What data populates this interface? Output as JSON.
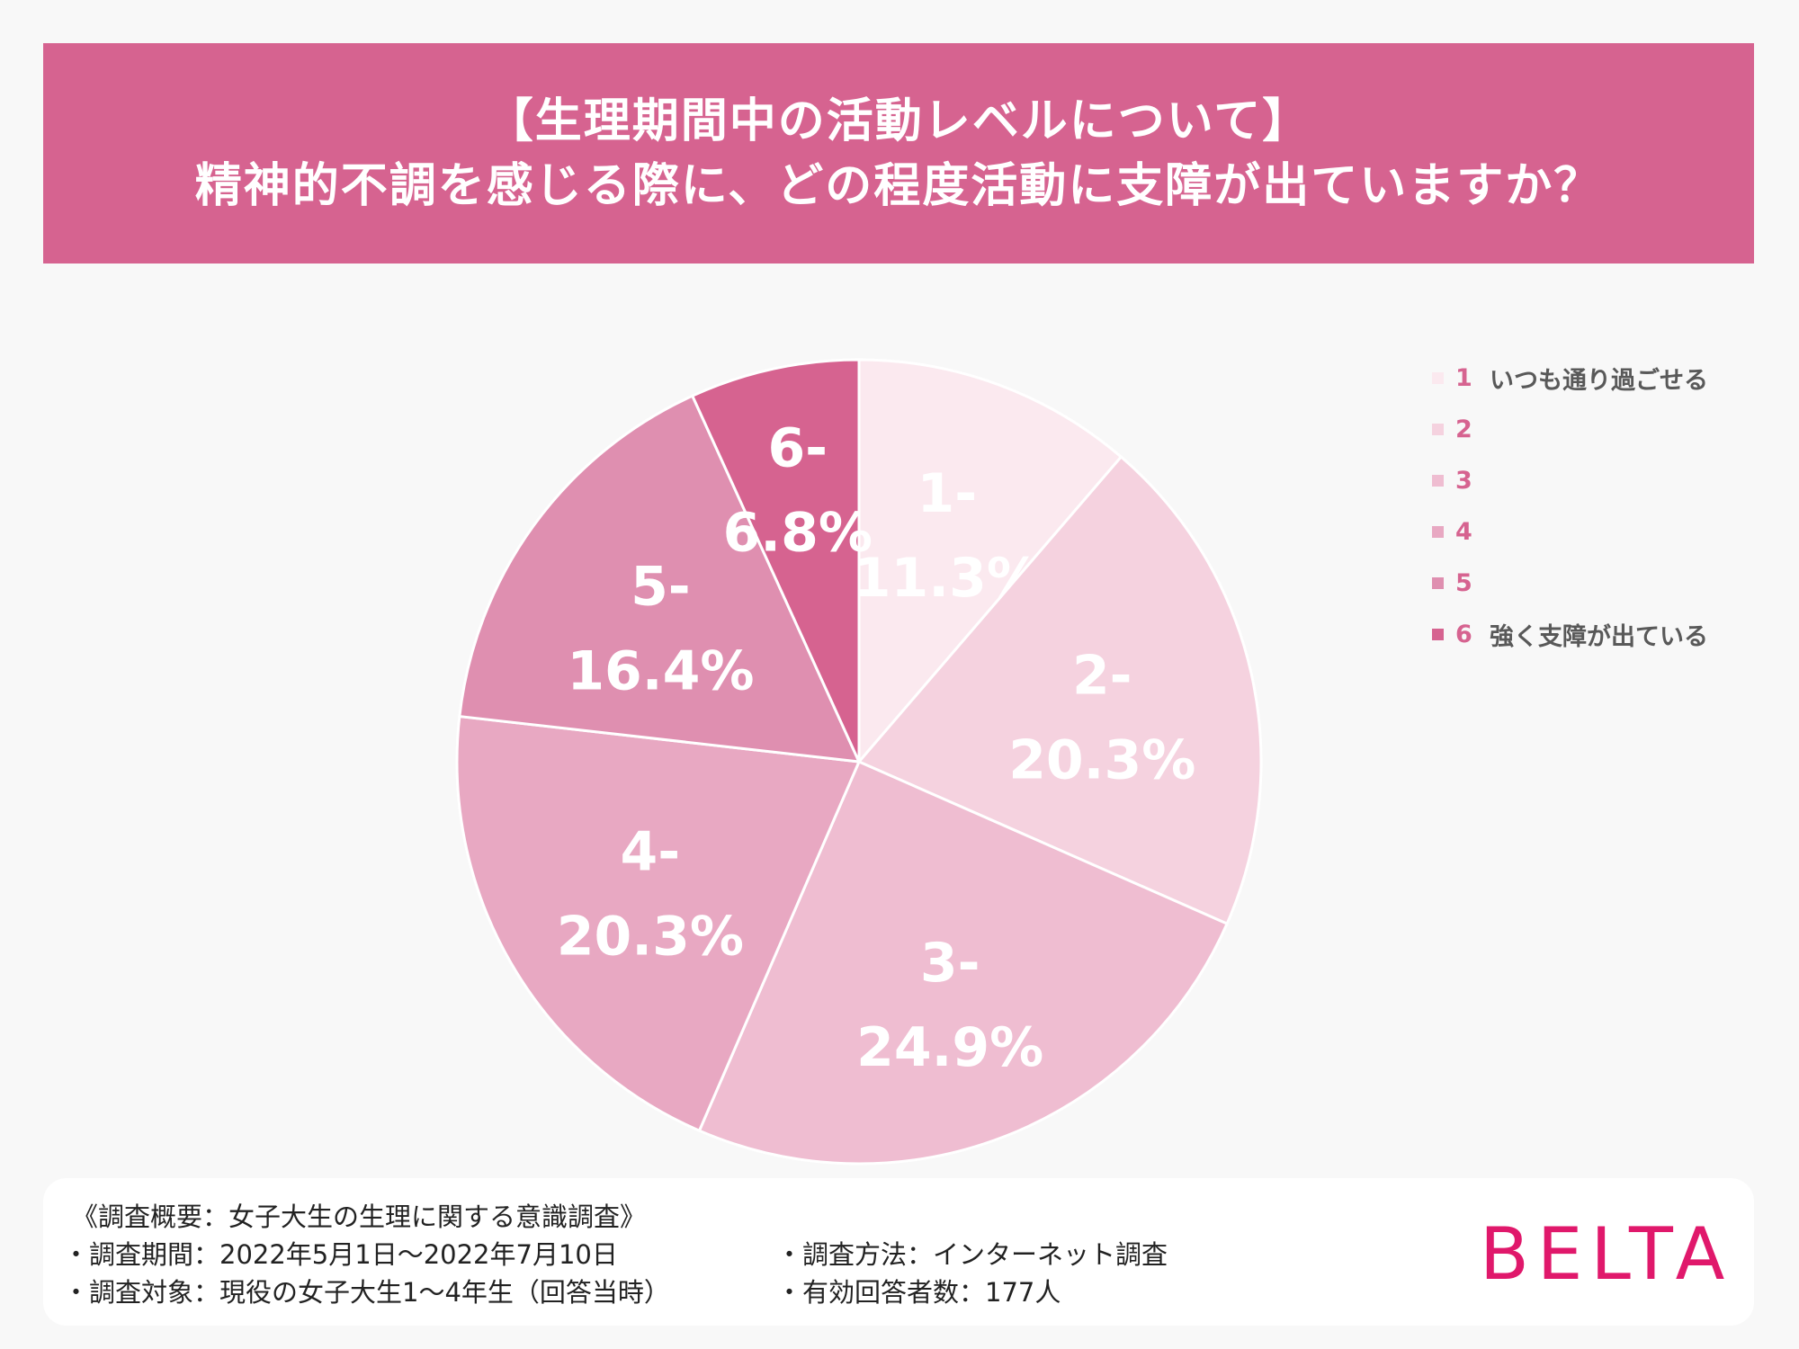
{
  "header": {
    "title_line1": "【生理期間中の活動レベルについて】",
    "title_line2": "精神的不調を感じる際に、どの程度活動に支障が出ていますか？"
  },
  "chart_data": {
    "type": "pie",
    "categories": [
      "1",
      "2",
      "3",
      "4",
      "5",
      "6"
    ],
    "values": [
      11.3,
      20.3,
      24.9,
      20.3,
      16.4,
      6.8
    ],
    "labels": [
      "1-\n11.3%",
      "2-\n20.3%",
      "3-\n24.9%",
      "4-\n20.3%",
      "5-\n16.4%",
      "6-\n6.8%"
    ],
    "colors": [
      "#fbe9ef",
      "#f5d2df",
      "#efbdd1",
      "#e8a8c2",
      "#df8fb0",
      "#d66390"
    ],
    "start_angle": "12 o'clock, clockwise",
    "legend": {
      "position": "right",
      "items": [
        {
          "num": "1",
          "text": "いつも通り過ごせる"
        },
        {
          "num": "2",
          "text": ""
        },
        {
          "num": "3",
          "text": ""
        },
        {
          "num": "4",
          "text": ""
        },
        {
          "num": "5",
          "text": ""
        },
        {
          "num": "6",
          "text": "強く支障が出ている"
        }
      ]
    }
  },
  "footer": {
    "heading": "《調査概要：女子大生の生理に関する意識調査》",
    "period": "・調査期間：2022年5月1日〜2022年7月10日",
    "target": "・調査対象：現役の女子大生1〜4年生（回答当時）",
    "method": "・調査方法：インターネット調査",
    "respondents": "・有効回答者数：177人"
  },
  "brand": {
    "logo_text": "BELTA",
    "color": "#e0186b"
  }
}
